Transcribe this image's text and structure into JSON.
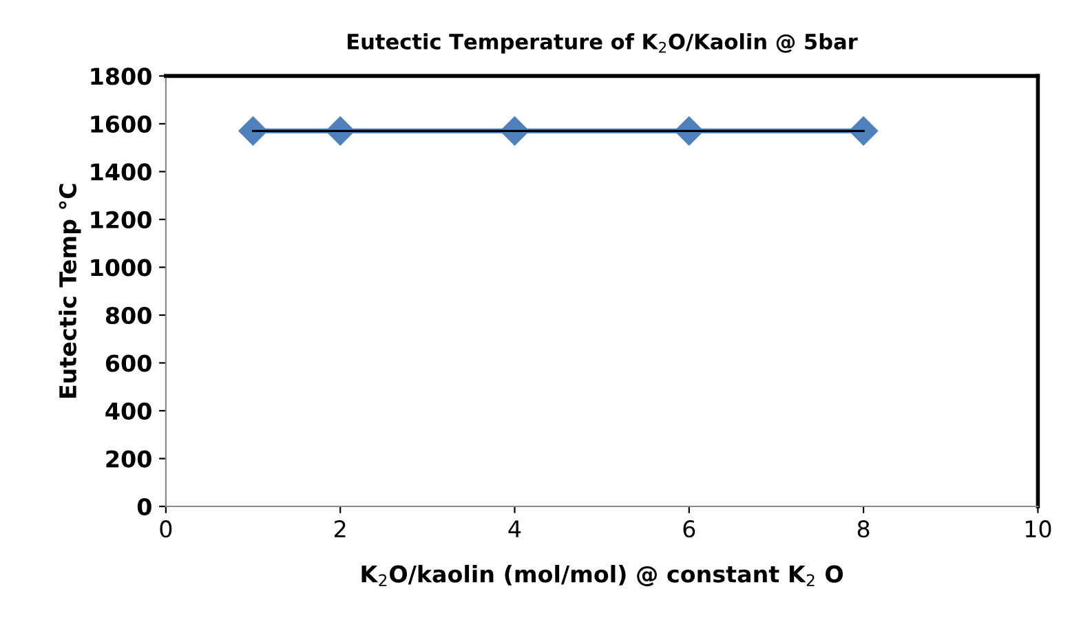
{
  "chart_data": {
    "type": "line",
    "title": "Eutectic Temperature of K$_{2}$O/Kaolin @ 5bar",
    "xlabel": "K$_{2}$O/kaolin (mol/mol) @ constant K$_{2}$ O",
    "ylabel": "Eutectic Temp °C",
    "x": [
      1,
      2,
      4,
      6,
      8
    ],
    "series": [
      {
        "color": "#4f81bd",
        "values": [
          1570,
          1570,
          1570,
          1570,
          1570
        ],
        "marker": "diamond"
      },
      {
        "type": "line",
        "color": "#000000",
        "x": [
          1,
          8
        ],
        "values": [
          1570,
          1570
        ],
        "marker": "none"
      }
    ],
    "xlim": [
      0,
      10
    ],
    "xticks": [
      0,
      2,
      4,
      6,
      8,
      10
    ],
    "ylim": [
      0,
      1800
    ],
    "yticks": [
      0,
      200,
      400,
      600,
      800,
      1000,
      1200,
      1400,
      1600,
      1800
    ],
    "grid": false,
    "legend": false
  }
}
